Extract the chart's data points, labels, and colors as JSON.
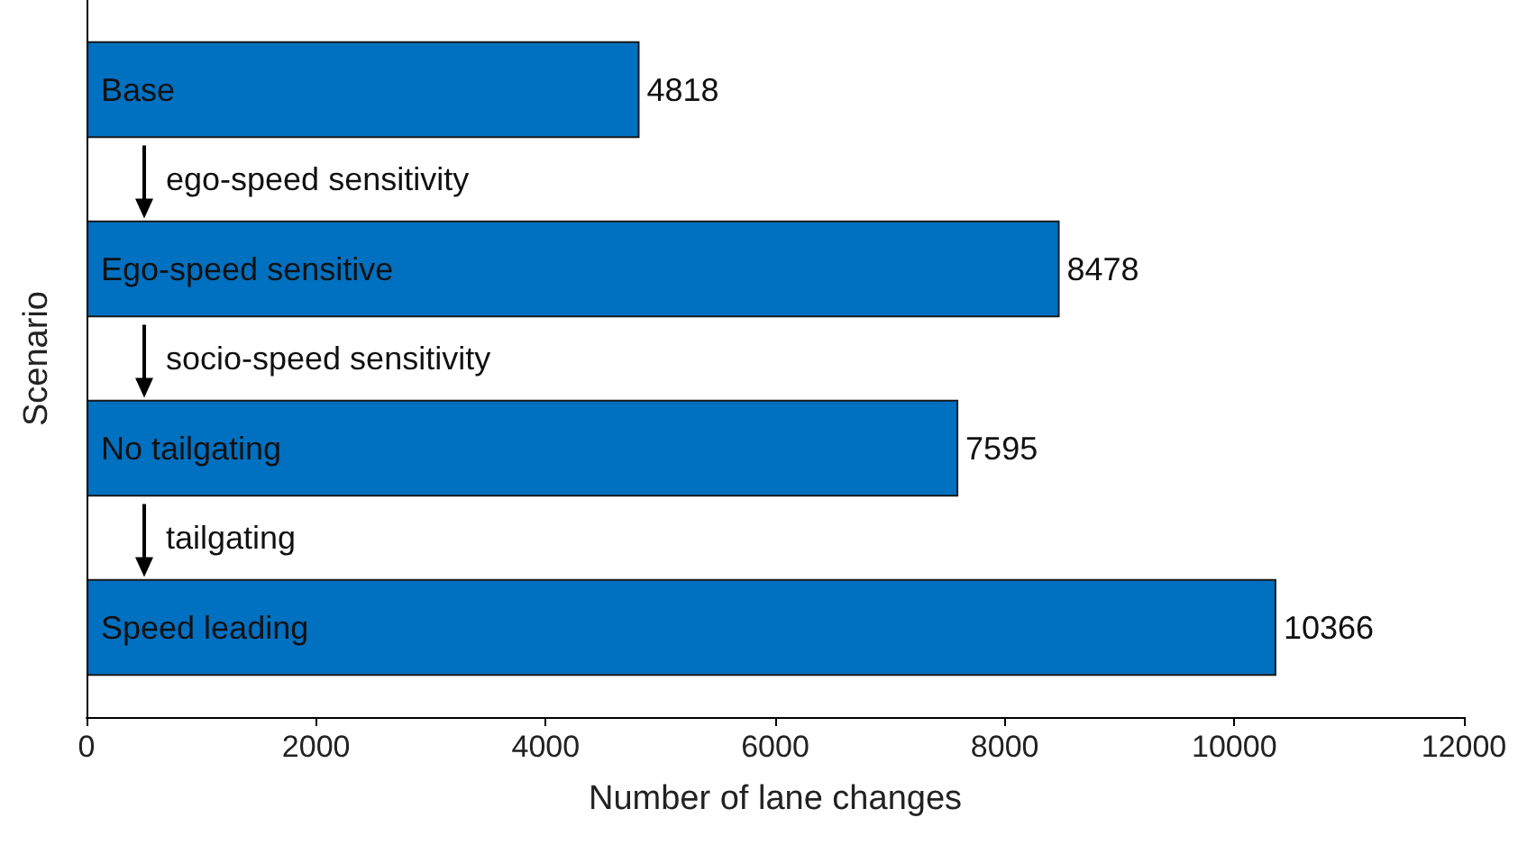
{
  "chart_data": {
    "type": "bar",
    "orientation": "horizontal",
    "xlabel": "Number of lane changes",
    "ylabel": "Scenario",
    "categories": [
      "Base",
      "Ego-speed sensitive",
      "No tailgating",
      "Speed leading"
    ],
    "values": [
      4818,
      8478,
      7595,
      10366
    ],
    "color": "#0070c0",
    "data_labels": true,
    "xlim": [
      0,
      12000
    ],
    "xticks": [
      0,
      2000,
      4000,
      6000,
      8000,
      10000,
      12000
    ],
    "grid": false,
    "annotations": [
      "ego-speed sensitivity",
      "socio-speed sensitivity",
      "tailgating"
    ]
  }
}
